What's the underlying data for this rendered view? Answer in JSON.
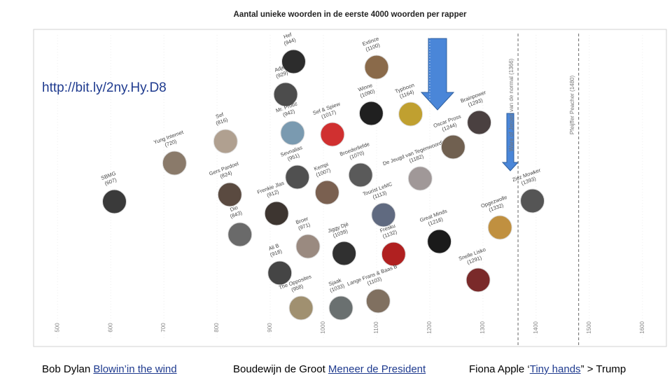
{
  "chart_data": {
    "type": "scatter",
    "title": "Aantal unieke woorden in de eerste 4000 woorden per rapper",
    "categories": [
      "SBMG",
      "Yung Internet",
      "Sef",
      "Gers Pardoel",
      "Dio",
      "Hef",
      "Adje",
      "Mr. Probz",
      "Sevnalias",
      "Frenkie Jlas",
      "Broer",
      "Ali B",
      "The Opposites",
      "Sef & Spiew",
      "Kempi",
      "Broederliefde",
      "Winne",
      "Extince",
      "Typhoon",
      "Tourist LeMC",
      "Jiggy Djé",
      "Fresku",
      "Sjaak",
      "Lange Frans & Baas B",
      "De Jeugd van Tegenwoordig",
      "Oscar Pross",
      "Brainpower",
      "Great Minds",
      "Opgezwolle",
      "Snelle Lisko",
      "Ziez Mowker"
    ],
    "values": [
      607,
      720,
      816,
      824,
      843,
      944,
      929,
      942,
      951,
      912,
      971,
      918,
      958,
      1017,
      1007,
      1070,
      1090,
      1100,
      1164,
      1113,
      1039,
      1132,
      1033,
      1103,
      1182,
      1244,
      1293,
      1218,
      1332,
      1291,
      1393
    ],
    "value_labels": [
      "(607)",
      "(720)",
      "(816)",
      "(824)",
      "(843)",
      "(944)",
      "(929)",
      "(942)",
      "(951)",
      "(912)",
      "(971)",
      "(918)",
      "(958)",
      "(1017)",
      "(1007)",
      "(1070)",
      "(1090)",
      "(1100)",
      "(1164)",
      "(1113)",
      "(1039)",
      "(1132)",
      "(1033)",
      "(1103)",
      "(1182)",
      "(1244)",
      "(1293)",
      "(1218)",
      "(1332)",
      "(1291)",
      "(1393)"
    ],
    "xlim": [
      455,
      1645
    ],
    "xticks": [
      500,
      600,
      700,
      800,
      900,
      1000,
      1100,
      1200,
      1300,
      1400,
      1500,
      1600
    ],
    "reference_lines": [
      {
        "value": 1366,
        "label": "Ware of Jeroen van de normal (1366)"
      },
      {
        "value": 1480,
        "label": "Pfeijffer Peacher (1480)"
      }
    ]
  },
  "url": "http://bit.ly/2ny.Hy.D8",
  "captions": [
    {
      "text": "Bob Dylan ",
      "link": "Blowin’in the wind"
    },
    {
      "text": "Boudewijn de Groot ",
      "link": "Meneer de President"
    },
    {
      "text": "Fiona Apple ‘",
      "link": "Tiny hands",
      "after": "” > Trump"
    }
  ]
}
